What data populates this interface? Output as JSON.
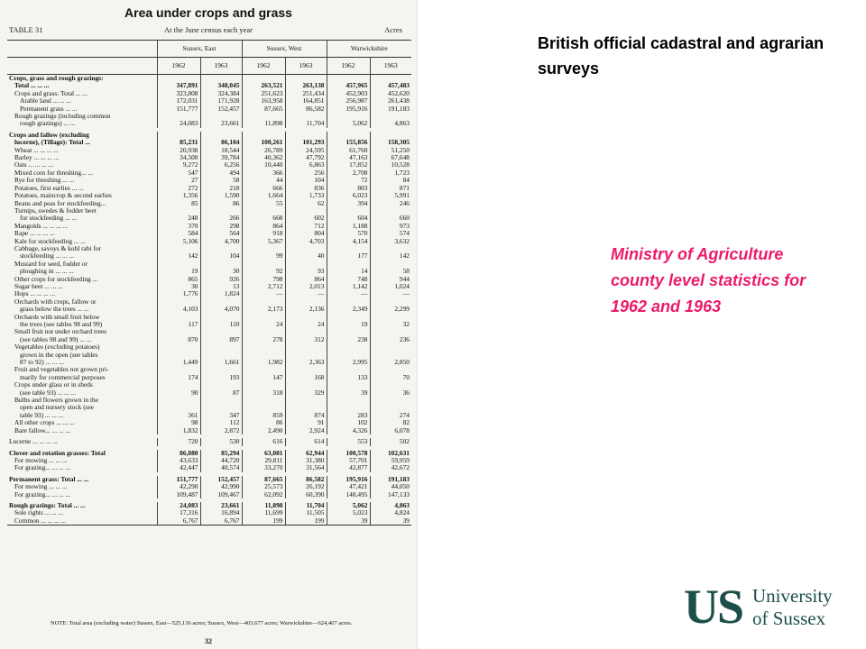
{
  "document": {
    "title": "Area under crops and grass",
    "table_label": "TABLE 31",
    "census_label": "At the June census each year",
    "unit_label": "Acres",
    "counties": [
      "Sussex, East",
      "Sussex, West",
      "Warwickshire"
    ],
    "years": [
      "1962",
      "1963",
      "1962",
      "1963",
      "1962",
      "1963"
    ],
    "rows": [
      {
        "label": "Crops, grass and rough grazings:",
        "values": [
          "",
          "",
          "",
          "",
          "",
          ""
        ],
        "bold": true,
        "indent": 0
      },
      {
        "label": "Total ... ... ...",
        "values": [
          "347,891",
          "348,045",
          "263,521",
          "263,138",
          "457,965",
          "457,483"
        ],
        "bold": true,
        "indent": 1
      },
      {
        "label": "Crops and grass: Total ... ...",
        "values": [
          "323,808",
          "324,384",
          "251,623",
          "251,434",
          "452,903",
          "452,620"
        ],
        "bold": false,
        "indent": 1
      },
      {
        "label": "Arable land ... ... ...",
        "values": [
          "172,031",
          "171,928",
          "163,958",
          "164,851",
          "256,987",
          "261,438"
        ],
        "bold": false,
        "indent": 2
      },
      {
        "label": "Permanent grass ... ...",
        "values": [
          "151,777",
          "152,457",
          "87,665",
          "86,582",
          "195,916",
          "191,183"
        ],
        "bold": false,
        "indent": 2
      },
      {
        "label": "Rough grazings (including common",
        "values": [
          "",
          "",
          "",
          "",
          "",
          ""
        ],
        "bold": false,
        "indent": 1
      },
      {
        "label": "rough grazings) ... ...",
        "values": [
          "24,083",
          "23,661",
          "11,898",
          "11,704",
          "5,062",
          "4,863"
        ],
        "bold": false,
        "indent": 2
      },
      {
        "spacer": true
      },
      {
        "label": "Crops and fallow (excluding",
        "values": [
          "",
          "",
          "",
          "",
          "",
          ""
        ],
        "bold": true,
        "indent": 0
      },
      {
        "label": "lucerne), (Tillage): Total ...",
        "values": [
          "85,231",
          "86,104",
          "100,261",
          "101,293",
          "155,856",
          "158,305"
        ],
        "bold": true,
        "indent": 1
      },
      {
        "label": "Wheat ... ... ... ...",
        "values": [
          "20,938",
          "18,544",
          "26,789",
          "24,595",
          "61,760",
          "51,250"
        ],
        "bold": false,
        "indent": 1
      },
      {
        "label": "Barley ... ... ... ...",
        "values": [
          "34,500",
          "39,784",
          "40,362",
          "47,792",
          "47,163",
          "67,648"
        ],
        "bold": false,
        "indent": 1
      },
      {
        "label": "Oats ... ... ... ...",
        "values": [
          "9,272",
          "6,256",
          "10,440",
          "6,863",
          "17,852",
          "10,528"
        ],
        "bold": false,
        "indent": 1
      },
      {
        "label": "Mixed corn for threshing... ...",
        "values": [
          "547",
          "494",
          "366",
          "256",
          "2,708",
          "1,723"
        ],
        "bold": false,
        "indent": 1
      },
      {
        "label": "Rye for threshing ... ...",
        "values": [
          "27",
          "58",
          "44",
          "104",
          "72",
          "84"
        ],
        "bold": false,
        "indent": 1
      },
      {
        "label": "Potatoes, first earlies ... ...",
        "values": [
          "272",
          "218",
          "666",
          "836",
          "803",
          "871"
        ],
        "bold": false,
        "indent": 1
      },
      {
        "label": "Potatoes, maincrop & second earlies",
        "values": [
          "1,356",
          "1,590",
          "1,664",
          "1,733",
          "6,023",
          "5,991"
        ],
        "bold": false,
        "indent": 1
      },
      {
        "label": "Beans and peas for stockfeeding...",
        "values": [
          "85",
          "86",
          "55",
          "62",
          "394",
          "246"
        ],
        "bold": false,
        "indent": 1
      },
      {
        "label": "Turnips, swedes & fodder beet",
        "values": [
          "",
          "",
          "",
          "",
          "",
          ""
        ],
        "bold": false,
        "indent": 1
      },
      {
        "label": "for stockfeeding ... ...",
        "values": [
          "248",
          "266",
          "668",
          "602",
          "604",
          "660"
        ],
        "bold": false,
        "indent": 2
      },
      {
        "label": "Mangolds ... ... ... ...",
        "values": [
          "370",
          "298",
          "864",
          "712",
          "1,188",
          "973"
        ],
        "bold": false,
        "indent": 1
      },
      {
        "label": "Rape ... ... ... ...",
        "values": [
          "584",
          "564",
          "918",
          "804",
          "570",
          "574"
        ],
        "bold": false,
        "indent": 1
      },
      {
        "label": "Kale for stockfeeding ... ...",
        "values": [
          "5,106",
          "4,700",
          "5,367",
          "4,703",
          "4,154",
          "3,632"
        ],
        "bold": false,
        "indent": 1
      },
      {
        "label": "Cabbage, savoys & kohl rabi for",
        "values": [
          "",
          "",
          "",
          "",
          "",
          ""
        ],
        "bold": false,
        "indent": 1
      },
      {
        "label": "stockfeeding ... ... ...",
        "values": [
          "142",
          "104",
          "99",
          "40",
          "177",
          "142"
        ],
        "bold": false,
        "indent": 2
      },
      {
        "label": "Mustard for seed, fodder or",
        "values": [
          "",
          "",
          "",
          "",
          "",
          ""
        ],
        "bold": false,
        "indent": 1
      },
      {
        "label": "ploughing in ... ... ...",
        "values": [
          "19",
          "30",
          "92",
          "93",
          "14",
          "58"
        ],
        "bold": false,
        "indent": 2
      },
      {
        "label": "Other crops for stockfeeding ...",
        "values": [
          "865",
          "926",
          "798",
          "864",
          "748",
          "944"
        ],
        "bold": false,
        "indent": 1
      },
      {
        "label": "Sugar beet ... ... ...",
        "values": [
          "30",
          "13",
          "2,712",
          "2,013",
          "1,142",
          "1,024"
        ],
        "bold": false,
        "indent": 1
      },
      {
        "label": "Hops ... ... ... ...",
        "values": [
          "1,776",
          "1,824",
          "—",
          "—",
          "—",
          "—"
        ],
        "bold": false,
        "indent": 1
      },
      {
        "label": "Orchards with crops, fallow or",
        "values": [
          "",
          "",
          "",
          "",
          "",
          ""
        ],
        "bold": false,
        "indent": 1
      },
      {
        "label": "grass below the trees ... ...",
        "values": [
          "4,103",
          "4,070",
          "2,173",
          "2,136",
          "2,349",
          "2,299"
        ],
        "bold": false,
        "indent": 2
      },
      {
        "label": "Orchards with small fruit below",
        "values": [
          "",
          "",
          "",
          "",
          "",
          ""
        ],
        "bold": false,
        "indent": 1
      },
      {
        "label": "the trees (see tables 98 and 99)",
        "values": [
          "117",
          "110",
          "24",
          "24",
          "19",
          "32"
        ],
        "bold": false,
        "indent": 2
      },
      {
        "label": "Small fruit not under orchard trees",
        "values": [
          "",
          "",
          "",
          "",
          "",
          ""
        ],
        "bold": false,
        "indent": 1
      },
      {
        "label": "(see tables 98 and 99) ... ...",
        "values": [
          "870",
          "897",
          "278",
          "312",
          "238",
          "236"
        ],
        "bold": false,
        "indent": 2
      },
      {
        "label": "Vegetables (excluding potatoes)",
        "values": [
          "",
          "",
          "",
          "",
          "",
          ""
        ],
        "bold": false,
        "indent": 1
      },
      {
        "label": "grown in the open (see tables",
        "values": [
          "",
          "",
          "",
          "",
          "",
          ""
        ],
        "bold": false,
        "indent": 2
      },
      {
        "label": "87 to 92) ... ... ...",
        "values": [
          "1,449",
          "1,661",
          "1,982",
          "2,363",
          "2,995",
          "2,850"
        ],
        "bold": false,
        "indent": 2
      },
      {
        "label": "Fruit and vegetables not grown pri-",
        "values": [
          "",
          "",
          "",
          "",
          "",
          ""
        ],
        "bold": false,
        "indent": 1
      },
      {
        "label": "marily for commercial purposes",
        "values": [
          "174",
          "193",
          "147",
          "168",
          "133",
          "70"
        ],
        "bold": false,
        "indent": 2
      },
      {
        "label": "Crops under glass or in sheds",
        "values": [
          "",
          "",
          "",
          "",
          "",
          ""
        ],
        "bold": false,
        "indent": 1
      },
      {
        "label": "(see table 93) ... ... ...",
        "values": [
          "90",
          "87",
          "318",
          "329",
          "39",
          "36"
        ],
        "bold": false,
        "indent": 2
      },
      {
        "label": "Bulbs and flowers grown in the",
        "values": [
          "",
          "",
          "",
          "",
          "",
          ""
        ],
        "bold": false,
        "indent": 1
      },
      {
        "label": "open and nursery stock (see",
        "values": [
          "",
          "",
          "",
          "",
          "",
          ""
        ],
        "bold": false,
        "indent": 2
      },
      {
        "label": "table 93) ... ... ...",
        "values": [
          "361",
          "347",
          "859",
          "874",
          "283",
          "274"
        ],
        "bold": false,
        "indent": 2
      },
      {
        "label": "All other crops ... ... ...",
        "values": [
          "98",
          "112",
          "86",
          "91",
          "102",
          "82"
        ],
        "bold": false,
        "indent": 1
      },
      {
        "label": "Bare fallow... ... ... ...",
        "values": [
          "1,832",
          "2,872",
          "2,490",
          "2,924",
          "4,326",
          "6,078"
        ],
        "bold": false,
        "indent": 1
      },
      {
        "spacer": true
      },
      {
        "label": "Lucerne ... ... ... ...",
        "values": [
          "720",
          "530",
          "616",
          "614",
          "553",
          "502"
        ],
        "bold": false,
        "indent": 0
      },
      {
        "spacer": true
      },
      {
        "label": "Clover and rotation grasses: Total",
        "values": [
          "86,080",
          "85,294",
          "63,081",
          "62,944",
          "100,578",
          "102,631"
        ],
        "bold": true,
        "indent": 0
      },
      {
        "label": "For mowing ... ... ...",
        "values": [
          "43,633",
          "44,720",
          "29,811",
          "31,380",
          "57,701",
          "59,959"
        ],
        "bold": false,
        "indent": 1
      },
      {
        "label": "For grazing... ... ... ...",
        "values": [
          "42,447",
          "40,574",
          "33,270",
          "31,564",
          "42,877",
          "42,672"
        ],
        "bold": false,
        "indent": 1
      },
      {
        "spacer": true
      },
      {
        "label": "Permanent grass: Total ... ...",
        "values": [
          "151,777",
          "152,457",
          "87,665",
          "86,582",
          "195,916",
          "191,183"
        ],
        "bold": true,
        "indent": 0
      },
      {
        "label": "For mowing ... ... ...",
        "values": [
          "42,290",
          "42,990",
          "25,573",
          "26,192",
          "47,421",
          "44,050"
        ],
        "bold": false,
        "indent": 1
      },
      {
        "label": "For grazing... ... ... ...",
        "values": [
          "109,487",
          "109,467",
          "62,092",
          "60,390",
          "148,495",
          "147,133"
        ],
        "bold": false,
        "indent": 1
      },
      {
        "spacer": true
      },
      {
        "label": "Rough grazings: Total ... ...",
        "values": [
          "24,083",
          "23,661",
          "11,898",
          "11,704",
          "5,062",
          "4,863"
        ],
        "bold": true,
        "indent": 0
      },
      {
        "label": "Sole rights ... ... ...",
        "values": [
          "17,316",
          "16,894",
          "11,699",
          "11,505",
          "5,023",
          "4,824"
        ],
        "bold": false,
        "indent": 1
      },
      {
        "label": "Common ... ... ... ...",
        "values": [
          "6,767",
          "6,767",
          "199",
          "199",
          "39",
          "39"
        ],
        "bold": false,
        "indent": 1,
        "last": true
      }
    ],
    "note": "NOTE: Total area (excluding water) Sussex, East—525,136 acres; Sussex, West—403,677 acres; Warwickshire—624,467 acres.",
    "page_number": "32"
  },
  "slide": {
    "heading": "British official cadastral and agrarian surveys",
    "subheading": "Ministry of Agriculture county level statistics for 1962 and 1963",
    "subheading_color": "#ec1b6b",
    "logo_letters": "US",
    "logo_text_line1": "University",
    "logo_text_line2": "of Sussex",
    "logo_color": "#1d4f4a"
  }
}
